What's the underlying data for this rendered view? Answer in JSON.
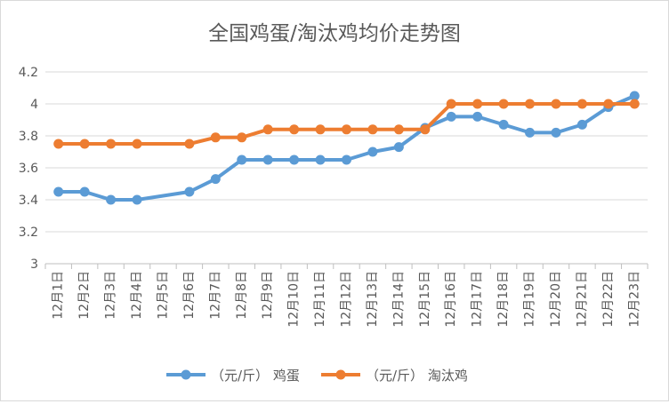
{
  "chart_data": {
    "type": "line",
    "title": "全国鸡蛋/淘汰鸡均价走势图",
    "categories": [
      "12月1日",
      "12月2日",
      "12月3日",
      "12月4日",
      "12月5日",
      "12月6日",
      "12月7日",
      "12月8日",
      "12月9日",
      "12月10日",
      "12月11日",
      "12月12日",
      "12月13日",
      "12月14日",
      "12月15日",
      "12月16日",
      "12月17日",
      "12月18日",
      "12月19日",
      "12月20日",
      "12月21日",
      "12月22日",
      "12月23日"
    ],
    "ylim": [
      3,
      4.2
    ],
    "yticks": [
      "3",
      "3.2",
      "3.4",
      "3.6",
      "3.8",
      "4",
      "4.2"
    ],
    "grid": true,
    "legend_position": "bottom",
    "series": [
      {
        "name": "（元/斤） 鸡蛋",
        "color": "#5b9bd5",
        "values": [
          3.45,
          3.45,
          3.4,
          3.4,
          null,
          3.45,
          3.53,
          3.65,
          3.65,
          3.65,
          3.65,
          3.65,
          3.7,
          3.73,
          3.85,
          3.92,
          3.92,
          3.87,
          3.82,
          3.82,
          3.87,
          3.98,
          4.05
        ]
      },
      {
        "name": "（元/斤） 淘汰鸡",
        "color": "#ed7d31",
        "values": [
          3.75,
          3.75,
          3.75,
          3.75,
          null,
          3.75,
          3.79,
          3.79,
          3.84,
          3.84,
          3.84,
          3.84,
          3.84,
          3.84,
          3.84,
          4.0,
          4.0,
          4.0,
          4.0,
          4.0,
          4.0,
          4.0,
          4.0
        ]
      }
    ]
  }
}
